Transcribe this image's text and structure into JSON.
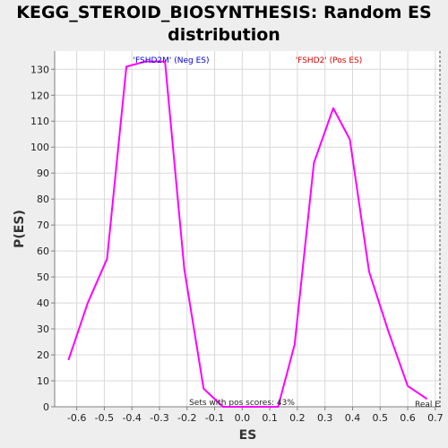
{
  "chart_data": {
    "type": "line",
    "title": "KEGG_STEROID_BIOSYNTHESIS: Random ES distribution",
    "xlabel": "ES",
    "ylabel": "P(ES)",
    "xlim": [
      -0.68,
      0.72
    ],
    "ylim": [
      0,
      137
    ],
    "xticks": [
      -0.6,
      -0.5,
      -0.4,
      -0.3,
      -0.2,
      -0.1,
      0.0,
      0.1,
      0.2,
      0.3,
      0.4,
      0.5,
      0.6,
      0.7
    ],
    "yticks": [
      0,
      10,
      20,
      30,
      40,
      50,
      60,
      70,
      80,
      90,
      100,
      110,
      120,
      130
    ],
    "grid": true,
    "series": [
      {
        "color": "#ff00ff",
        "x": [
          -0.63,
          -0.56,
          -0.49,
          -0.42,
          -0.35,
          -0.28,
          -0.21,
          -0.14,
          -0.07,
          0.0,
          0.07,
          0.13,
          0.19,
          0.26,
          0.33,
          0.39,
          0.46,
          0.53,
          0.6,
          0.67
        ],
        "y": [
          18,
          40,
          57,
          131,
          133,
          133,
          53,
          7,
          0,
          0,
          0,
          0,
          24,
          94,
          115,
          103,
          52,
          29,
          8,
          3
        ]
      }
    ],
    "annotations": {
      "neg_label": "'FSHD2M' (Neg ES)",
      "neg_color": "#0000dd",
      "pos_label": "'FSHD2' (Pos ES)",
      "pos_color": "#dd0000",
      "pos_scores": "Sets with pos scores: 43%",
      "real_label": "Real E"
    }
  }
}
